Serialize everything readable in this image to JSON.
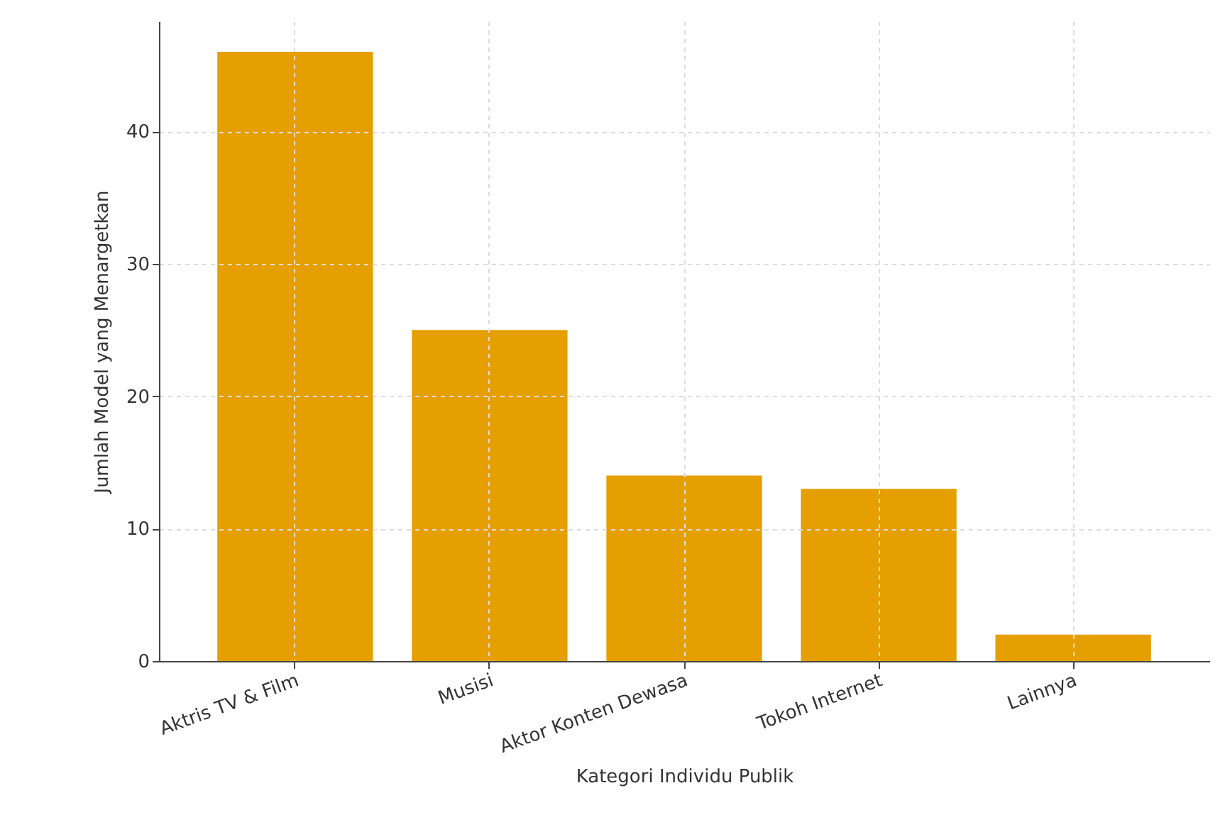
{
  "chart_data": {
    "type": "bar",
    "xlabel": "Kategori Individu Publik",
    "ylabel": "Jumlah Model yang Menargetkan",
    "categories": [
      "Aktris TV & Film",
      "Musisi",
      "Aktor Konten Dewasa",
      "Tokoh Internet",
      "Lainnya"
    ],
    "values": [
      46,
      25,
      14,
      13,
      2
    ],
    "color": "#e69f00",
    "ylim": [
      0,
      48.3
    ],
    "yticks": [
      0,
      10,
      20,
      30,
      40
    ],
    "grid": true
  }
}
